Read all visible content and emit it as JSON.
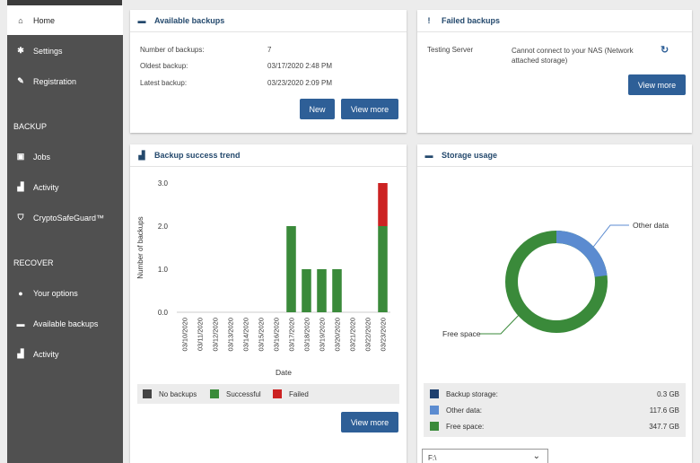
{
  "sidebar": {
    "items": [
      {
        "label": "Home",
        "icon": "home-icon"
      },
      {
        "label": "Settings",
        "icon": "gear-icon"
      },
      {
        "label": "Registration",
        "icon": "key-icon"
      }
    ],
    "backup_section": "BACKUP",
    "backup_items": [
      {
        "label": "Jobs",
        "icon": "jobs-icon"
      },
      {
        "label": "Activity",
        "icon": "activity-chart-icon"
      },
      {
        "label": "CryptoSafeGuard™",
        "icon": "shield-icon"
      }
    ],
    "recover_section": "RECOVER",
    "recover_items": [
      {
        "label": "Your options",
        "icon": "info-icon"
      },
      {
        "label": "Available backups",
        "icon": "drive-icon"
      },
      {
        "label": "Activity",
        "icon": "activity-chart-icon"
      }
    ]
  },
  "available_backups": {
    "title": "Available backups",
    "rows": [
      {
        "label": "Number of backups:",
        "value": "7"
      },
      {
        "label": "Oldest backup:",
        "value": "03/17/2020 2:48 PM"
      },
      {
        "label": "Latest backup:",
        "value": "03/23/2020 2:09 PM"
      }
    ],
    "new_button": "New",
    "view_more_button": "View more"
  },
  "failed_backups": {
    "title": "Failed backups",
    "server": "Testing Server",
    "message": "Cannot connect to your NAS (Network attached storage)",
    "message_line1": "Cannot connect to your NAS (Network",
    "message_line2": "attached storage)",
    "view_more_button": "View more"
  },
  "trend": {
    "title": "Backup success trend",
    "view_more_button": "View more"
  },
  "chart_data": {
    "type": "bar",
    "stacked": true,
    "xlabel": "Date",
    "ylabel": "Number of backups",
    "ylim": [
      0,
      3
    ],
    "yticks": [
      "0.0",
      "1.0",
      "2.0",
      "3.0"
    ],
    "categories": [
      "03/10/2020",
      "03/11/2020",
      "03/12/2020",
      "03/13/2020",
      "03/14/2020",
      "03/15/2020",
      "03/16/2020",
      "03/17/2020",
      "03/18/2020",
      "03/19/2020",
      "03/20/2020",
      "03/21/2020",
      "03/22/2020",
      "03/23/2020"
    ],
    "series": [
      {
        "name": "No backups",
        "color": "#444444",
        "values": [
          0,
          0,
          0,
          0,
          0,
          0,
          0,
          0,
          0,
          0,
          0,
          0,
          0,
          0
        ]
      },
      {
        "name": "Successful",
        "color": "#3a8a3a",
        "values": [
          0,
          0,
          0,
          0,
          0,
          0,
          0,
          2,
          1,
          1,
          1,
          0,
          0,
          2
        ]
      },
      {
        "name": "Failed",
        "color": "#cc2222",
        "values": [
          0,
          0,
          0,
          0,
          0,
          0,
          0,
          0,
          0,
          0,
          0,
          0,
          0,
          1
        ]
      }
    ],
    "legend": "bottom",
    "grid": false
  },
  "storage": {
    "title": "Storage usage",
    "label_other": "Other data",
    "label_free": "Free space",
    "rows": [
      {
        "label": "Backup storage:",
        "value": "0.3 GB",
        "color": "#1d3f6e"
      },
      {
        "label": "Other data:",
        "value": "117.6 GB",
        "color": "#5b8bd0"
      },
      {
        "label": "Free space:",
        "value": "347.7 GB",
        "color": "#3a8a3a"
      }
    ],
    "drive_value": "F:\\"
  }
}
